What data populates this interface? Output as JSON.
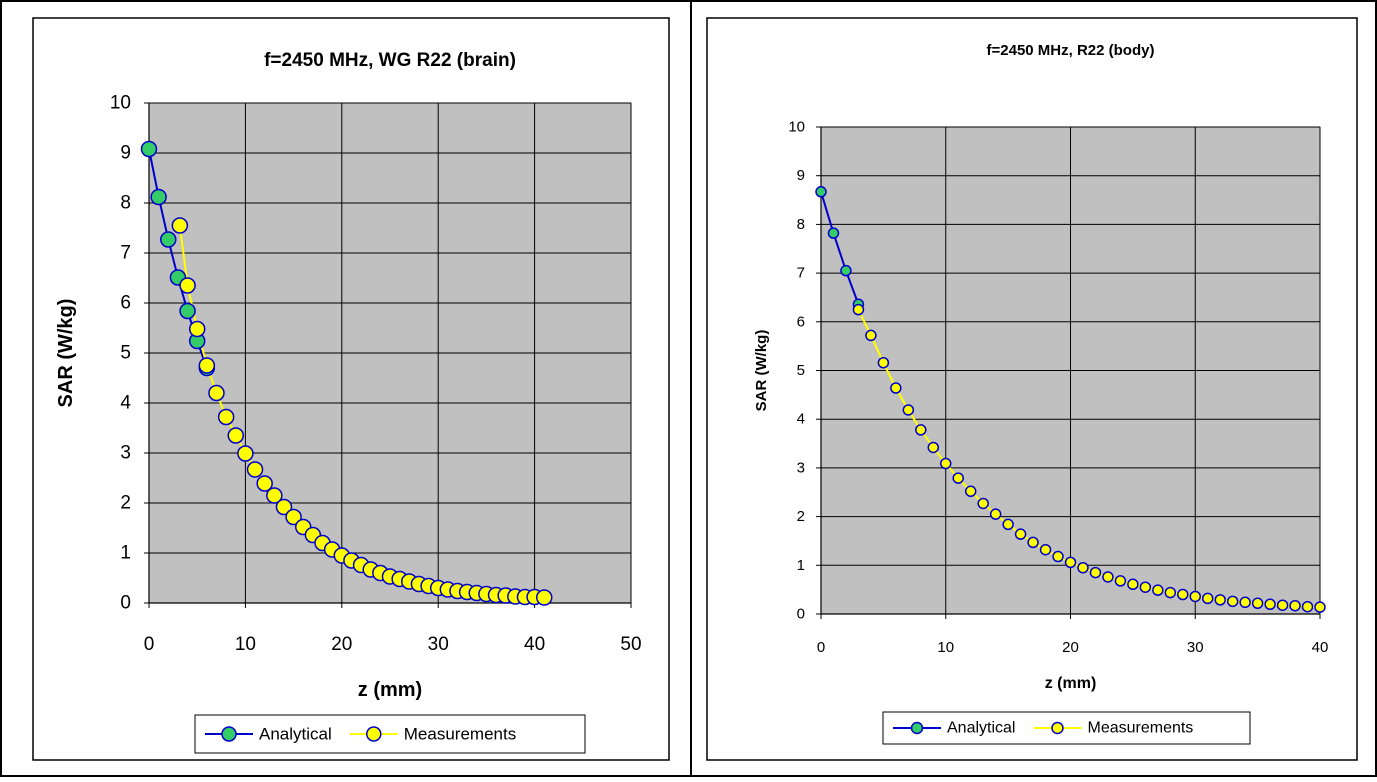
{
  "chart_data": [
    {
      "type": "line",
      "title": "f=2450 MHz, WG R22 (brain)",
      "xlabel": "z (mm)",
      "ylabel": "SAR (W/kg)",
      "xlim": [
        0,
        50
      ],
      "ylim": [
        0,
        10
      ],
      "xticks": [
        0,
        10,
        20,
        30,
        40,
        50
      ],
      "yticks": [
        0,
        1,
        2,
        3,
        4,
        5,
        6,
        7,
        8,
        9,
        10
      ],
      "grid": true,
      "legend_position": "bottom",
      "series": [
        {
          "name": "Analytical",
          "line_color": "#0000cc",
          "marker_color": "#33cc66",
          "x": [
            0,
            1,
            2,
            3,
            4,
            5,
            6
          ],
          "y": [
            9.08,
            8.12,
            7.27,
            6.51,
            5.84,
            5.24,
            4.7
          ]
        },
        {
          "name": "Measurements",
          "line_color": "#ffff00",
          "marker_color": "#ffff00",
          "x": [
            3.2,
            4,
            5,
            6,
            7,
            8,
            9,
            10,
            11,
            12,
            13,
            14,
            15,
            16,
            17,
            18,
            19,
            20,
            21,
            22,
            23,
            24,
            25,
            26,
            27,
            28,
            29,
            30,
            31,
            32,
            33,
            34,
            35,
            36,
            37,
            38,
            39,
            40,
            41
          ],
          "y": [
            7.55,
            6.35,
            5.48,
            4.75,
            4.2,
            3.72,
            3.35,
            2.99,
            2.67,
            2.39,
            2.15,
            1.92,
            1.72,
            1.52,
            1.36,
            1.2,
            1.07,
            0.95,
            0.85,
            0.76,
            0.67,
            0.6,
            0.53,
            0.48,
            0.43,
            0.38,
            0.34,
            0.3,
            0.27,
            0.24,
            0.22,
            0.2,
            0.18,
            0.16,
            0.15,
            0.13,
            0.12,
            0.12,
            0.11
          ]
        }
      ]
    },
    {
      "type": "line",
      "title": "f=2450 MHz, R22  (body)",
      "xlabel": "z (mm)",
      "ylabel": "SAR (W/kg)",
      "xlim": [
        0,
        40
      ],
      "ylim": [
        0,
        10
      ],
      "xticks": [
        0,
        10,
        20,
        30,
        40
      ],
      "yticks": [
        0,
        1,
        2,
        3,
        4,
        5,
        6,
        7,
        8,
        9,
        10
      ],
      "grid": true,
      "legend_position": "bottom",
      "series": [
        {
          "name": "Analytical",
          "line_color": "#0000cc",
          "marker_color": "#33cc66",
          "x": [
            0,
            1,
            2,
            3
          ],
          "y": [
            8.67,
            7.82,
            7.05,
            6.36
          ]
        },
        {
          "name": "Measurements",
          "line_color": "#ffff00",
          "marker_color": "#ffff00",
          "x": [
            3,
            4,
            5,
            6,
            7,
            8,
            9,
            10,
            11,
            12,
            13,
            14,
            15,
            16,
            17,
            18,
            19,
            20,
            21,
            22,
            23,
            24,
            25,
            26,
            27,
            28,
            29,
            30,
            31,
            32,
            33,
            34,
            35,
            36,
            37,
            38,
            39,
            40
          ],
          "y": [
            6.25,
            5.72,
            5.16,
            4.64,
            4.19,
            3.78,
            3.42,
            3.09,
            2.79,
            2.52,
            2.27,
            2.05,
            1.84,
            1.64,
            1.47,
            1.32,
            1.18,
            1.06,
            0.95,
            0.85,
            0.76,
            0.68,
            0.61,
            0.55,
            0.49,
            0.44,
            0.4,
            0.36,
            0.32,
            0.29,
            0.26,
            0.24,
            0.22,
            0.2,
            0.18,
            0.17,
            0.15,
            0.14
          ]
        }
      ]
    }
  ]
}
